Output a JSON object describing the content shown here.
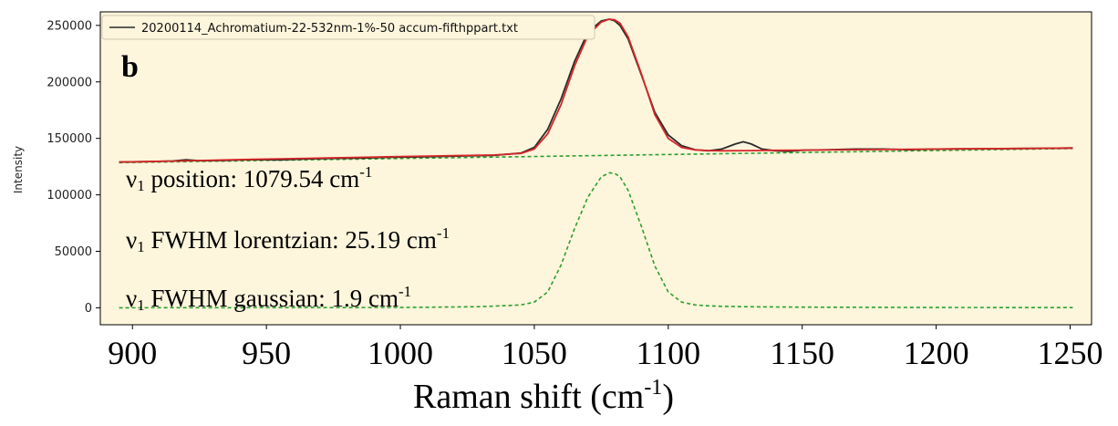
{
  "chart_data": {
    "type": "line",
    "title": "",
    "panel_label": "b",
    "xlabel": "Raman shift (cm",
    "xlabel_sup": "-1",
    "xlabel_close": ")",
    "ylabel": "Intensity",
    "xlim": [
      888,
      1258
    ],
    "ylim": [
      -15000,
      262000
    ],
    "x_ticks": [
      900,
      950,
      1000,
      1050,
      1100,
      1150,
      1200,
      1250
    ],
    "y_ticks": [
      0,
      50000,
      100000,
      150000,
      200000,
      250000
    ],
    "grid": false,
    "background": "#fdf5dc",
    "legend": {
      "position": "top-left",
      "entries": [
        {
          "label": "20200114_Achromatium-22-532nm-1%-50 accum-fifthppart.txt",
          "color": "#2b2b2b"
        }
      ]
    },
    "series": [
      {
        "name": "20200114_Achromatium-22-532nm-1%-50 accum-fifthppart.txt",
        "color": "#2b2b2b",
        "style": "solid",
        "x": [
          895,
          905,
          915,
          920,
          925,
          935,
          945,
          955,
          965,
          975,
          985,
          995,
          1005,
          1015,
          1025,
          1035,
          1045,
          1050,
          1055,
          1060,
          1065,
          1070,
          1075,
          1078,
          1080,
          1082,
          1085,
          1090,
          1095,
          1100,
          1105,
          1110,
          1115,
          1120,
          1125,
          1128,
          1131,
          1135,
          1140,
          1145,
          1150,
          1160,
          1170,
          1180,
          1190,
          1200,
          1210,
          1220,
          1230,
          1240,
          1251
        ],
        "y": [
          129000,
          129500,
          130000,
          131000,
          130200,
          130500,
          131200,
          131000,
          131800,
          132300,
          132500,
          133200,
          133500,
          134000,
          134500,
          135000,
          137000,
          142000,
          158000,
          185000,
          218000,
          244000,
          254000,
          255500,
          254000,
          250000,
          238000,
          206000,
          173000,
          153000,
          143500,
          140000,
          139000,
          140500,
          145000,
          147000,
          145000,
          140500,
          139000,
          138500,
          139500,
          140000,
          140500,
          140500,
          140000,
          140500,
          140700,
          140800,
          141000,
          141200,
          141500
        ]
      },
      {
        "name": "",
        "color": "#d62728",
        "style": "solid",
        "x": [
          895,
          905,
          915,
          925,
          935,
          945,
          955,
          965,
          975,
          985,
          995,
          1005,
          1015,
          1025,
          1035,
          1045,
          1050,
          1055,
          1060,
          1065,
          1070,
          1075,
          1078,
          1080,
          1082,
          1085,
          1090,
          1095,
          1100,
          1105,
          1110,
          1115,
          1120,
          1130,
          1140,
          1150,
          1170,
          1190,
          1210,
          1230,
          1251
        ],
        "y": [
          129000,
          129400,
          129900,
          130400,
          130900,
          131400,
          131900,
          132300,
          132800,
          133200,
          133700,
          134100,
          134500,
          134900,
          135300,
          136700,
          140500,
          154000,
          180000,
          214000,
          241000,
          253000,
          255500,
          255000,
          252000,
          240000,
          207000,
          171000,
          150000,
          142000,
          139800,
          139200,
          139000,
          139200,
          139400,
          139600,
          140000,
          140400,
          140700,
          141000,
          141400
        ]
      },
      {
        "name": "",
        "color": "#2ca02c",
        "style": "dashed",
        "x": [
          895,
          1251
        ],
        "y": [
          128500,
          141000
        ]
      },
      {
        "name": "",
        "color": "#2ca02c",
        "style": "dashed",
        "x": [
          895,
          1000,
          1030,
          1045,
          1050,
          1055,
          1060,
          1065,
          1070,
          1075,
          1078,
          1080,
          1082,
          1085,
          1090,
          1095,
          1100,
          1105,
          1110,
          1115,
          1120,
          1130,
          1150,
          1200,
          1251
        ],
        "y": [
          0,
          300,
          1000,
          2500,
          5000,
          14000,
          38000,
          70000,
          98000,
          116000,
          119500,
          119000,
          116000,
          104000,
          72000,
          37000,
          14000,
          5000,
          2500,
          1700,
          1300,
          900,
          600,
          300,
          200
        ]
      }
    ],
    "annotations": [
      {
        "main": "ν",
        "sub": "1",
        "text": " position: 1079.54 cm",
        "sup": "-1"
      },
      {
        "main": "ν",
        "sub": "1",
        "text": " FWHM lorentzian: 25.19 cm",
        "sup": "-1"
      },
      {
        "main": "ν",
        "sub": "1",
        "text": " FWHM gaussian: 1.9 cm",
        "sup": "-1"
      }
    ]
  }
}
